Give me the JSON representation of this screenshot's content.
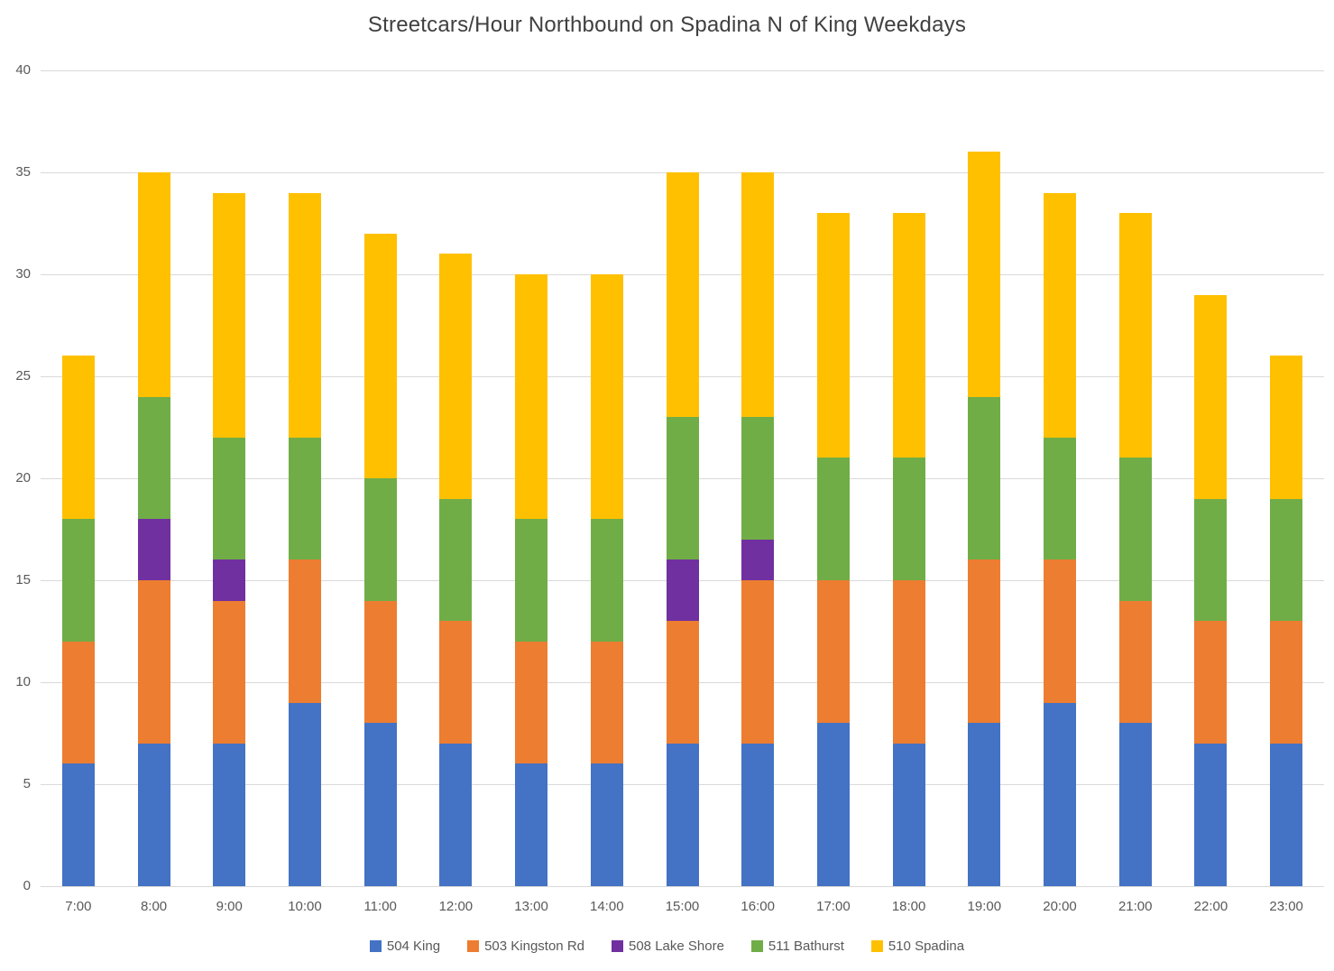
{
  "chart_data": {
    "type": "bar",
    "stacked": true,
    "title": "Streetcars/Hour Northbound on Spadina N of King Weekdays",
    "xlabel": "",
    "ylabel": "",
    "ylim": [
      0,
      40
    ],
    "yticks": [
      0,
      5,
      10,
      15,
      20,
      25,
      30,
      35,
      40
    ],
    "grid": true,
    "legend_position": "bottom",
    "categories": [
      "7:00",
      "8:00",
      "9:00",
      "10:00",
      "11:00",
      "12:00",
      "13:00",
      "14:00",
      "15:00",
      "16:00",
      "17:00",
      "18:00",
      "19:00",
      "20:00",
      "21:00",
      "22:00",
      "23:00"
    ],
    "series": [
      {
        "name": "504 King",
        "color": "#4472C4",
        "values": [
          6,
          7,
          7,
          9,
          8,
          7,
          6,
          6,
          7,
          7,
          8,
          7,
          8,
          9,
          8,
          7,
          7
        ]
      },
      {
        "name": "503 Kingston Rd",
        "color": "#ED7D31",
        "values": [
          6,
          8,
          7,
          7,
          6,
          6,
          6,
          6,
          6,
          8,
          7,
          8,
          8,
          7,
          6,
          6,
          6
        ]
      },
      {
        "name": "508 Lake Shore",
        "color": "#7030A0",
        "values": [
          0,
          3,
          2,
          0,
          0,
          0,
          0,
          0,
          3,
          2,
          0,
          0,
          0,
          0,
          0,
          0,
          0
        ]
      },
      {
        "name": "511 Bathurst",
        "color": "#70AD47",
        "values": [
          6,
          6,
          6,
          6,
          6,
          6,
          6,
          6,
          7,
          6,
          6,
          6,
          8,
          6,
          7,
          6,
          6
        ]
      },
      {
        "name": "510 Spadina",
        "color": "#FFC000",
        "values": [
          8,
          11,
          12,
          12,
          12,
          12,
          12,
          12,
          12,
          12,
          12,
          12,
          12,
          12,
          12,
          10,
          7
        ]
      }
    ],
    "totals": [
      26,
      35,
      34,
      34,
      32,
      31,
      30,
      30,
      35,
      35,
      33,
      33,
      36,
      34,
      33,
      29,
      26
    ]
  },
  "colors": {
    "grid": "#D9D9D9",
    "axis_text": "#595959",
    "title_text": "#404040",
    "background": "#FFFFFF"
  }
}
